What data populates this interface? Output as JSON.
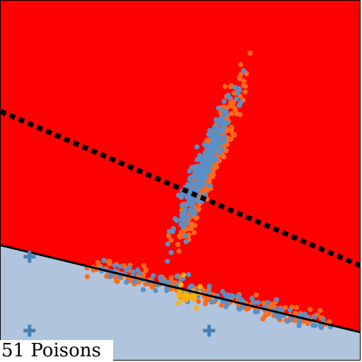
{
  "caption": "51 Poisons",
  "chart_data": {
    "type": "scatter",
    "title": "",
    "xlabel": "",
    "ylabel": "",
    "xlim": [
      0,
      100
    ],
    "ylim": [
      0,
      100
    ],
    "grid": false,
    "legend": "none",
    "regions": [
      {
        "name": "upper",
        "color": "#ff0000"
      },
      {
        "name": "lower",
        "color": "#b0c4de"
      }
    ],
    "boundaries": [
      {
        "style": "solid",
        "color": "#000000",
        "points": [
          [
            0,
            32.2
          ],
          [
            100,
            8.0
          ]
        ]
      },
      {
        "style": "dotted",
        "color": "#000000",
        "points": [
          [
            0,
            69.3
          ],
          [
            100,
            26.4
          ]
        ]
      }
    ],
    "markers": [
      {
        "symbol": "plus",
        "color": "#4682b4",
        "points": [
          [
            8,
            29
          ],
          [
            8,
            8.5
          ],
          [
            57.8,
            8.5
          ]
        ]
      }
    ],
    "clusters": [
      {
        "color": "#ff6a1a",
        "count": 330,
        "center": [
          58,
          55
        ],
        "spread": [
          4.2,
          10.5
        ],
        "corr": 0.93
      },
      {
        "color": "#5b8fc7",
        "count": 260,
        "center": [
          56,
          53
        ],
        "spread": [
          3.9,
          9.0
        ],
        "corr": 0.93
      },
      {
        "color": "#ff6a1a",
        "count": 190,
        "band": [
          [
            25,
            26.5
          ],
          [
            91,
            10
          ]
        ],
        "jitter": 2.6
      },
      {
        "color": "#5b8fc7",
        "count": 120,
        "band": [
          [
            25,
            26.5
          ],
          [
            91,
            10
          ]
        ],
        "jitter": 2.6
      },
      {
        "color": "#ffb000",
        "count": 22,
        "center": [
          51.5,
          18.5
        ],
        "spread": [
          1.6,
          2.2
        ],
        "corr": 0.0
      }
    ]
  }
}
